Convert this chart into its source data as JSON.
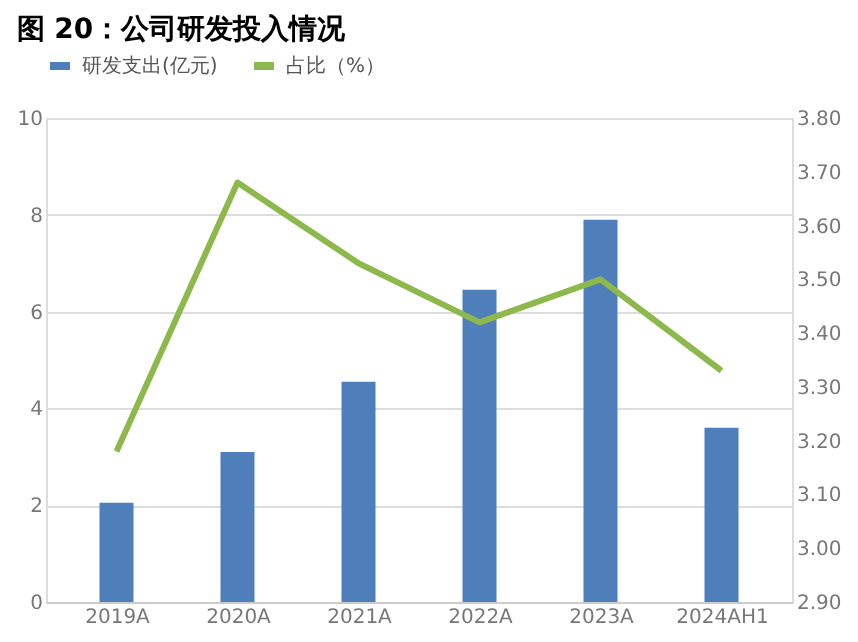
{
  "chart_data": {
    "type": "bar",
    "title": "图 20：公司研发投入情况",
    "categories": [
      "2019A",
      "2020A",
      "2021A",
      "2022A",
      "2023A",
      "2024AH1"
    ],
    "series": [
      {
        "name": "研发支出(亿元)",
        "color": "#4e7fbb",
        "values": [
          2.05,
          3.1,
          4.55,
          6.45,
          7.9,
          3.6
        ]
      },
      {
        "name": "占比（%）",
        "type": "line",
        "axis": "y2",
        "color": "#8db94c",
        "values": [
          3.18,
          3.68,
          3.53,
          3.42,
          3.5,
          3.33
        ]
      }
    ],
    "ylim": [
      0,
      10
    ],
    "yticks": [
      0,
      2,
      4,
      6,
      8,
      10
    ],
    "y2lim": [
      2.9,
      3.8
    ],
    "y2ticks": [
      {
        "value": 2.9,
        "label": "2.90"
      },
      {
        "value": 3.0,
        "label": "3.00"
      },
      {
        "value": 3.1,
        "label": "3.10"
      },
      {
        "value": 3.2,
        "label": "3.20"
      },
      {
        "value": 3.3,
        "label": "3.30"
      },
      {
        "value": 3.4,
        "label": "3.40"
      },
      {
        "value": 3.5,
        "label": "3.50"
      },
      {
        "value": 3.6,
        "label": "3.60"
      },
      {
        "value": 3.7,
        "label": "3.70"
      },
      {
        "value": 3.8,
        "label": "3.80"
      }
    ],
    "grid": "y",
    "legend": "top"
  }
}
